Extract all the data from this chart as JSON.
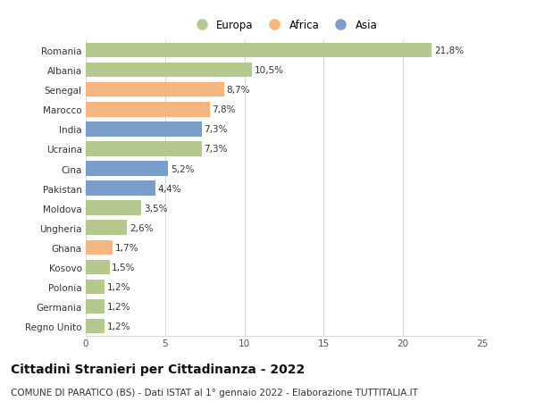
{
  "countries": [
    "Romania",
    "Albania",
    "Senegal",
    "Marocco",
    "India",
    "Ucraina",
    "Cina",
    "Pakistan",
    "Moldova",
    "Ungheria",
    "Ghana",
    "Kosovo",
    "Polonia",
    "Germania",
    "Regno Unito"
  ],
  "values": [
    21.8,
    10.5,
    8.7,
    7.8,
    7.3,
    7.3,
    5.2,
    4.4,
    3.5,
    2.6,
    1.7,
    1.5,
    1.2,
    1.2,
    1.2
  ],
  "labels": [
    "21,8%",
    "10,5%",
    "8,7%",
    "7,8%",
    "7,3%",
    "7,3%",
    "5,2%",
    "4,4%",
    "3,5%",
    "2,6%",
    "1,7%",
    "1,5%",
    "1,2%",
    "1,2%",
    "1,2%"
  ],
  "continents": [
    "Europa",
    "Europa",
    "Africa",
    "Africa",
    "Asia",
    "Europa",
    "Asia",
    "Asia",
    "Europa",
    "Europa",
    "Africa",
    "Europa",
    "Europa",
    "Europa",
    "Europa"
  ],
  "colors": {
    "Europa": "#b5c98e",
    "Africa": "#f4b57e",
    "Asia": "#7b9dc9"
  },
  "legend_entries": [
    "Europa",
    "Africa",
    "Asia"
  ],
  "legend_colors": [
    "#b5c98e",
    "#f4b57e",
    "#7b9dc9"
  ],
  "xlim": [
    0,
    25
  ],
  "xticks": [
    0,
    5,
    10,
    15,
    20,
    25
  ],
  "title": "Cittadini Stranieri per Cittadinanza - 2022",
  "subtitle": "COMUNE DI PARATICO (BS) - Dati ISTAT al 1° gennaio 2022 - Elaborazione TUTTITALIA.IT",
  "background_color": "#ffffff",
  "grid_color": "#d8d8d8",
  "bar_height": 0.75,
  "label_fontsize": 7.5,
  "title_fontsize": 10,
  "subtitle_fontsize": 7.5,
  "tick_fontsize": 7.5,
  "legend_fontsize": 8.5
}
